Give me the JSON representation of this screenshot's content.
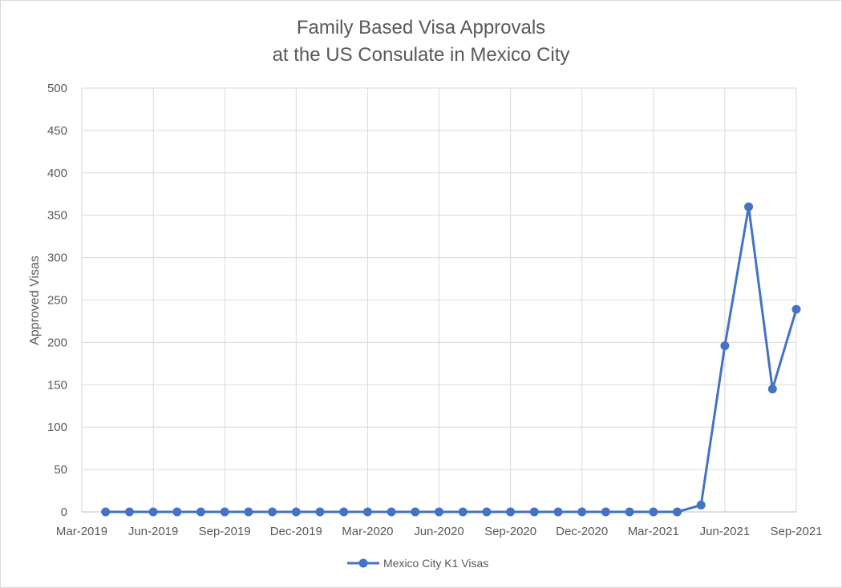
{
  "chart_data": {
    "type": "line",
    "title": [
      "Family Based Visa Approvals",
      "at the US Consulate in Mexico City"
    ],
    "xlabel": "",
    "ylabel": "Approved Visas",
    "ylim": [
      0,
      500
    ],
    "yticks": [
      0,
      50,
      100,
      150,
      200,
      250,
      300,
      350,
      400,
      450,
      500
    ],
    "xlim": [
      "2019-03",
      "2021-09"
    ],
    "xticks": [
      "Mar-2019",
      "Jun-2019",
      "Sep-2019",
      "Dec-2019",
      "Mar-2020",
      "Jun-2020",
      "Sep-2020",
      "Dec-2020",
      "Mar-2021",
      "Jun-2021",
      "Sep-2021"
    ],
    "grid": true,
    "legend_position": "bottom",
    "series": [
      {
        "name": "Mexico City K1 Visas",
        "color": "#4472c4",
        "marker": "circle",
        "x": [
          "2019-04",
          "2019-05",
          "2019-06",
          "2019-07",
          "2019-08",
          "2019-09",
          "2019-10",
          "2019-11",
          "2019-12",
          "2020-01",
          "2020-02",
          "2020-03",
          "2020-04",
          "2020-05",
          "2020-06",
          "2020-07",
          "2020-08",
          "2020-09",
          "2020-10",
          "2020-11",
          "2020-12",
          "2021-01",
          "2021-02",
          "2021-03",
          "2021-04",
          "2021-05",
          "2021-06",
          "2021-07",
          "2021-08",
          "2021-09"
        ],
        "values": [
          0,
          0,
          0,
          0,
          0,
          0,
          0,
          0,
          0,
          0,
          0,
          0,
          0,
          0,
          0,
          0,
          0,
          0,
          0,
          0,
          0,
          0,
          0,
          0,
          0,
          8,
          196,
          360,
          145,
          239
        ]
      }
    ]
  }
}
